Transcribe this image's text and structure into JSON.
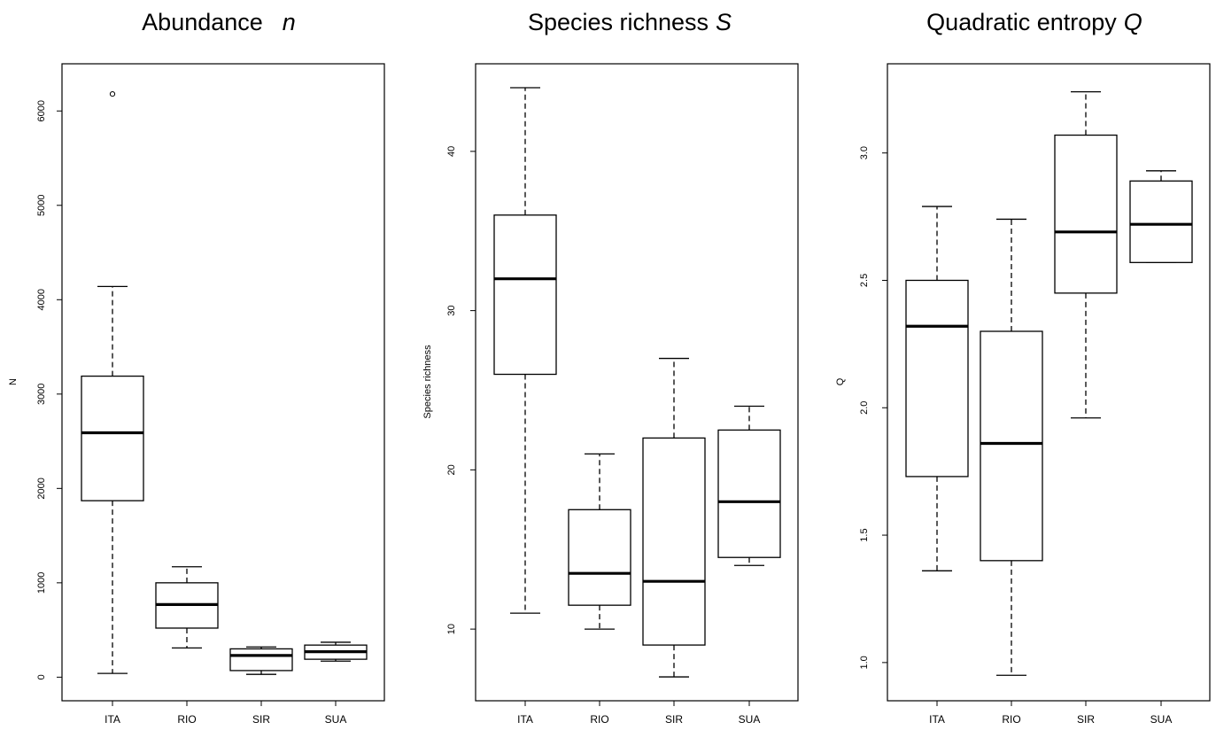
{
  "chart_data": [
    {
      "type": "boxplot",
      "title": "Abundance",
      "title_var": "n",
      "xlabel": "",
      "ylabel": "N",
      "ylim": [
        -250,
        6500
      ],
      "yticks": [
        0,
        1000,
        2000,
        3000,
        4000,
        5000,
        6000
      ],
      "ytick_labels": [
        "0",
        "1000",
        "2000",
        "3000",
        "4000",
        "5000",
        "6000"
      ],
      "categories": [
        "ITA",
        "RIO",
        "SIR",
        "SUA"
      ],
      "boxes": [
        {
          "whisker_low": 40,
          "q1": 1870,
          "median": 2590,
          "q3": 3190,
          "whisker_high": 4140,
          "outliers": [
            6180
          ]
        },
        {
          "whisker_low": 310,
          "q1": 520,
          "median": 770,
          "q3": 1000,
          "whisker_high": 1170,
          "outliers": []
        },
        {
          "whisker_low": 30,
          "q1": 70,
          "median": 230,
          "q3": 300,
          "whisker_high": 320,
          "outliers": []
        },
        {
          "whisker_low": 170,
          "q1": 190,
          "median": 270,
          "q3": 340,
          "whisker_high": 370,
          "outliers": []
        }
      ]
    },
    {
      "type": "boxplot",
      "title": "Species richness",
      "title_var": "S",
      "xlabel": "",
      "ylabel": "Species richness",
      "ylim": [
        5.5,
        45.5
      ],
      "yticks": [
        10,
        20,
        30,
        40
      ],
      "ytick_labels": [
        "10",
        "20",
        "30",
        "40"
      ],
      "categories": [
        "ITA",
        "RIO",
        "SIR",
        "SUA"
      ],
      "boxes": [
        {
          "whisker_low": 11,
          "q1": 26,
          "median": 32,
          "q3": 36,
          "whisker_high": 44,
          "outliers": []
        },
        {
          "whisker_low": 10,
          "q1": 11.5,
          "median": 13.5,
          "q3": 17.5,
          "whisker_high": 21,
          "outliers": []
        },
        {
          "whisker_low": 7,
          "q1": 9,
          "median": 13,
          "q3": 22,
          "whisker_high": 27,
          "outliers": []
        },
        {
          "whisker_low": 14,
          "q1": 14.5,
          "median": 18,
          "q3": 22.5,
          "whisker_high": 24,
          "outliers": []
        }
      ]
    },
    {
      "type": "boxplot",
      "title": "Quadratic  entropy",
      "title_var": "Q",
      "xlabel": "",
      "ylabel": "Q",
      "ylim": [
        0.85,
        3.35
      ],
      "yticks": [
        1.0,
        1.5,
        2.0,
        2.5,
        3.0
      ],
      "ytick_labels": [
        "1.0",
        "1.5",
        "2.0",
        "2.5",
        "3.0"
      ],
      "categories": [
        "ITA",
        "RIO",
        "SIR",
        "SUA"
      ],
      "boxes": [
        {
          "whisker_low": 1.36,
          "q1": 1.73,
          "median": 2.32,
          "q3": 2.5,
          "whisker_high": 2.79,
          "outliers": []
        },
        {
          "whisker_low": 0.95,
          "q1": 1.4,
          "median": 1.86,
          "q3": 2.3,
          "whisker_high": 2.74,
          "outliers": []
        },
        {
          "whisker_low": 1.96,
          "q1": 2.45,
          "median": 2.69,
          "q3": 3.07,
          "whisker_high": 3.24,
          "outliers": []
        },
        {
          "whisker_low": 2.57,
          "q1": 2.57,
          "median": 2.72,
          "q3": 2.89,
          "whisker_high": 2.93,
          "outliers": []
        }
      ]
    }
  ]
}
